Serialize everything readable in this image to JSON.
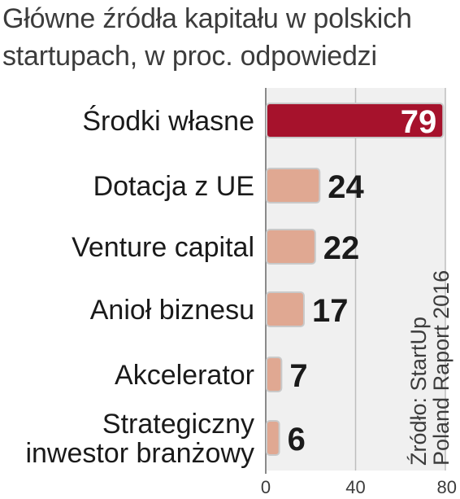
{
  "chart_data": {
    "type": "bar",
    "orientation": "horizontal",
    "title_lines": [
      "Główne źródła kapitału w polskich",
      "startupach, w proc. odpowiedzi"
    ],
    "categories": [
      [
        "Środki własne"
      ],
      [
        "Dotacja z UE"
      ],
      [
        "Venture capital"
      ],
      [
        "Anioł biznesu"
      ],
      [
        "Akcelerator"
      ],
      [
        "Strategiczny",
        "inwestor branżowy"
      ]
    ],
    "values": [
      79,
      24,
      22,
      17,
      7,
      6
    ],
    "value_labels": [
      "79",
      "24",
      "22",
      "17",
      "7",
      "6"
    ],
    "highlight_index": 0,
    "xlim": [
      0,
      80
    ],
    "xticks": [
      0,
      40,
      80
    ],
    "xtick_labels": [
      "0",
      "40",
      "80"
    ],
    "grid": true,
    "source_lines": [
      "Źródło: StartUp",
      "Poland Raport 2016"
    ],
    "colors": {
      "highlight_bar": "#a6122c",
      "bar": "#e0a892",
      "bar_outline": "#c9c9c9",
      "grid": "#bdbdbd",
      "plot_background": "#f0f0f0"
    }
  }
}
